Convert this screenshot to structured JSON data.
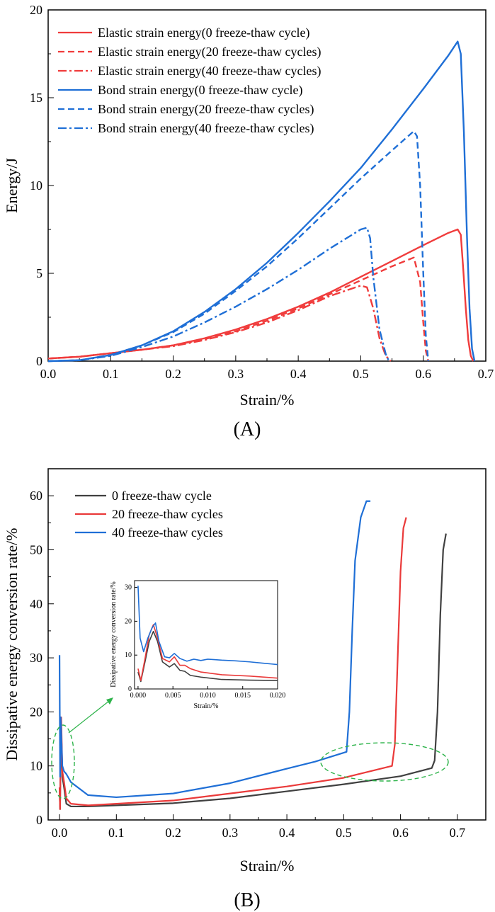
{
  "chart_data": [
    {
      "type": "line",
      "panel_label": "(A)",
      "xlabel": "Strain/%",
      "ylabel": "Energy/J",
      "xlim": [
        0.0,
        0.7
      ],
      "ylim": [
        0,
        20
      ],
      "xticks": [
        "0.0",
        "0.1",
        "0.2",
        "0.3",
        "0.4",
        "0.5",
        "0.6",
        "0.7"
      ],
      "yticks": [
        "0",
        "5",
        "10",
        "15",
        "20"
      ],
      "legend_position": "top-left",
      "series": [
        {
          "name": "Elastic strain energy(0 freeze-thaw cycle)",
          "color": "#f03c3c",
          "dash": "solid",
          "x": [
            0,
            0.05,
            0.1,
            0.15,
            0.2,
            0.25,
            0.3,
            0.35,
            0.4,
            0.45,
            0.5,
            0.55,
            0.6,
            0.64,
            0.655,
            0.66,
            0.664,
            0.668,
            0.672,
            0.676,
            0.68
          ],
          "y": [
            0.15,
            0.25,
            0.45,
            0.65,
            0.9,
            1.3,
            1.8,
            2.4,
            3.1,
            3.9,
            4.8,
            5.7,
            6.6,
            7.3,
            7.5,
            7.2,
            5.2,
            3.0,
            1.2,
            0.3,
            0
          ]
        },
        {
          "name": "Elastic strain energy(20 freeze-thaw cycles)",
          "color": "#f03c3c",
          "dash": "dashed",
          "x": [
            0,
            0.05,
            0.1,
            0.15,
            0.2,
            0.25,
            0.3,
            0.35,
            0.4,
            0.45,
            0.5,
            0.55,
            0.585,
            0.595,
            0.6,
            0.604,
            0.608
          ],
          "y": [
            0.15,
            0.25,
            0.45,
            0.65,
            0.9,
            1.25,
            1.7,
            2.3,
            3.0,
            3.8,
            4.6,
            5.4,
            5.9,
            4.5,
            2.2,
            0.6,
            0
          ]
        },
        {
          "name": "Elastic strain energy(40 freeze-thaw cycles)",
          "color": "#f03c3c",
          "dash": "dashdot",
          "x": [
            0,
            0.05,
            0.1,
            0.15,
            0.2,
            0.25,
            0.3,
            0.35,
            0.4,
            0.45,
            0.5,
            0.51,
            0.52,
            0.53,
            0.54,
            0.548
          ],
          "y": [
            0.15,
            0.25,
            0.45,
            0.65,
            0.85,
            1.2,
            1.65,
            2.2,
            2.9,
            3.7,
            4.3,
            4.2,
            3.0,
            1.3,
            0.3,
            0
          ]
        },
        {
          "name": "Bond strain energy(0 freeze-thaw cycle)",
          "color": "#1f6fd6",
          "dash": "solid",
          "x": [
            0,
            0.05,
            0.1,
            0.15,
            0.2,
            0.25,
            0.3,
            0.35,
            0.4,
            0.45,
            0.5,
            0.55,
            0.6,
            0.64,
            0.655,
            0.66,
            0.665,
            0.67,
            0.674,
            0.678,
            0.682
          ],
          "y": [
            0,
            0.05,
            0.35,
            0.9,
            1.7,
            2.8,
            4.1,
            5.6,
            7.3,
            9.1,
            11.0,
            13.2,
            15.5,
            17.4,
            18.2,
            17.5,
            13.0,
            7.0,
            3.0,
            0.7,
            0
          ]
        },
        {
          "name": "Bond strain energy(20 freeze-thaw cycles)",
          "color": "#1f6fd6",
          "dash": "dashed",
          "x": [
            0,
            0.05,
            0.1,
            0.15,
            0.2,
            0.25,
            0.3,
            0.35,
            0.4,
            0.45,
            0.5,
            0.55,
            0.585,
            0.59,
            0.595,
            0.6,
            0.604,
            0.608
          ],
          "y": [
            0,
            0.05,
            0.35,
            0.9,
            1.65,
            2.7,
            4.0,
            5.4,
            7.0,
            8.7,
            10.4,
            12.0,
            13.1,
            12.8,
            10.0,
            5.0,
            1.5,
            0
          ]
        },
        {
          "name": "Bond strain energy(40 freeze-thaw cycles)",
          "color": "#1f6fd6",
          "dash": "dashdot",
          "x": [
            0,
            0.05,
            0.1,
            0.15,
            0.2,
            0.25,
            0.3,
            0.35,
            0.4,
            0.45,
            0.5,
            0.51,
            0.515,
            0.52,
            0.53,
            0.54,
            0.545
          ],
          "y": [
            0,
            0.05,
            0.3,
            0.8,
            1.4,
            2.2,
            3.1,
            4.1,
            5.2,
            6.4,
            7.5,
            7.6,
            7.0,
            4.8,
            1.8,
            0.4,
            0
          ]
        }
      ]
    },
    {
      "type": "line",
      "panel_label": "(B)",
      "xlabel": "Strain/%",
      "ylabel": "Dissipative energy conversion rate/%",
      "xlim": [
        -0.02,
        0.75
      ],
      "ylim": [
        0,
        65
      ],
      "xticks": [
        "0.0",
        "0.1",
        "0.2",
        "0.3",
        "0.4",
        "0.5",
        "0.6",
        "0.7"
      ],
      "yticks": [
        "0",
        "10",
        "20",
        "30",
        "40",
        "50",
        "60"
      ],
      "legend_position": "top-left",
      "series": [
        {
          "name": "0 freeze-thaw cycle",
          "color": "#404040",
          "x": [
            0,
            0.001,
            0.002,
            0.003,
            0.005,
            0.008,
            0.012,
            0.02,
            0.05,
            0.1,
            0.2,
            0.3,
            0.4,
            0.5,
            0.6,
            0.655,
            0.66,
            0.665,
            0.67,
            0.675,
            0.68
          ],
          "y": [
            6,
            2,
            12,
            17,
            8,
            6,
            3,
            2.5,
            2.5,
            2.7,
            3.1,
            4.0,
            5.3,
            6.6,
            8.1,
            9.6,
            11,
            20,
            38,
            50,
            53
          ]
        },
        {
          "name": "20 freeze-thaw cycles",
          "color": "#ea3a3a",
          "x": [
            0,
            0.001,
            0.002,
            0.003,
            0.005,
            0.008,
            0.012,
            0.02,
            0.05,
            0.1,
            0.2,
            0.3,
            0.4,
            0.5,
            0.585,
            0.59,
            0.595,
            0.6,
            0.605,
            0.61
          ],
          "y": [
            6,
            2,
            13,
            19,
            9,
            7,
            4,
            3,
            2.7,
            3.0,
            3.6,
            4.9,
            6.2,
            7.8,
            10,
            14,
            30,
            46,
            54,
            56
          ]
        },
        {
          "name": "40 freeze-thaw cycles",
          "color": "#1f6fd6",
          "x": [
            0,
            0.001,
            0.002,
            0.003,
            0.005,
            0.008,
            0.012,
            0.02,
            0.05,
            0.1,
            0.2,
            0.3,
            0.4,
            0.45,
            0.505,
            0.51,
            0.515,
            0.52,
            0.53,
            0.54,
            0.547
          ],
          "y": [
            30.5,
            8,
            19,
            16,
            10,
            9,
            8.5,
            7,
            4.6,
            4.2,
            4.9,
            6.8,
            9.5,
            10.8,
            12.6,
            20,
            35,
            48,
            56,
            59,
            59
          ]
        }
      ],
      "inset": {
        "xlabel": "Strain/%",
        "ylabel": "Dissipative energy conversion rate/%",
        "xlim": [
          -0.0005,
          0.02
        ],
        "ylim": [
          0,
          32
        ],
        "xticks": [
          "0.000",
          "0.005",
          "0.010",
          "0.015",
          "0.020"
        ],
        "yticks": [
          "0",
          "10",
          "20",
          "30"
        ],
        "series": [
          {
            "name": "0 freeze-thaw cycle",
            "color": "#404040",
            "x": [
              0,
              0.0004,
              0.001,
              0.0016,
              0.0022,
              0.0028,
              0.0035,
              0.0045,
              0.0052,
              0.006,
              0.0067,
              0.0075,
              0.009,
              0.012,
              0.016,
              0.02
            ],
            "y": [
              5,
              2.2,
              8,
              14,
              17,
              14,
              8,
              6.5,
              7.5,
              5.5,
              5.2,
              4.0,
              3.5,
              2.8,
              2.6,
              2.5
            ]
          },
          {
            "name": "20 freeze-thaw cycles",
            "color": "#ea3a3a",
            "x": [
              0,
              0.0004,
              0.001,
              0.0016,
              0.0022,
              0.0028,
              0.0035,
              0.0045,
              0.0052,
              0.006,
              0.0067,
              0.0075,
              0.009,
              0.012,
              0.016,
              0.02
            ],
            "y": [
              6,
              2.5,
              9,
              16,
              19,
              15,
              9,
              8,
              9.5,
              7,
              7,
              6,
              5,
              4.2,
              3.8,
              3.2
            ]
          },
          {
            "name": "40 freeze-thaw cycles",
            "color": "#1f6fd6",
            "x": [
              0,
              0.0003,
              0.0008,
              0.0014,
              0.002,
              0.0025,
              0.003,
              0.0038,
              0.0045,
              0.0052,
              0.006,
              0.007,
              0.008,
              0.009,
              0.01,
              0.012,
              0.014,
              0.016,
              0.018,
              0.02
            ],
            "y": [
              30.5,
              15,
              11,
              15,
              18,
              19.5,
              14,
              9.5,
              9.2,
              10.5,
              9,
              8.2,
              8.8,
              8.4,
              8.8,
              8.5,
              8.3,
              8.0,
              7.6,
              7.2
            ]
          }
        ]
      }
    }
  ]
}
